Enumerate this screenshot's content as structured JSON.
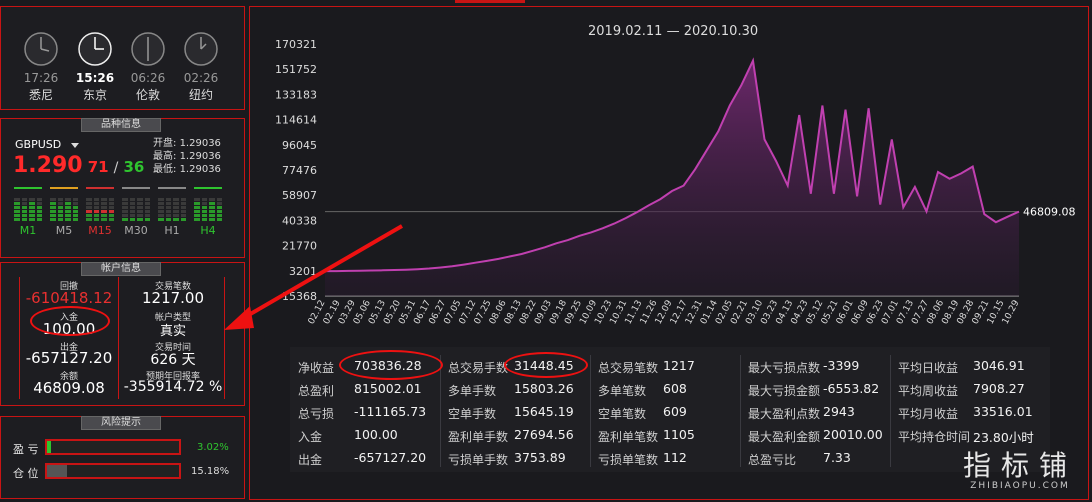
{
  "clocks": [
    {
      "time": "17:26",
      "city": "悉尼"
    },
    {
      "time": "15:26",
      "city": "东京"
    },
    {
      "time": "06:26",
      "city": "伦敦"
    },
    {
      "time": "02:26",
      "city": "纽约"
    }
  ],
  "symbol_panel": {
    "title": "品种信息",
    "symbol": "GBPUSD",
    "price_big": "1.290",
    "price_mid": "71",
    "price_sep": "/",
    "price_small": "36",
    "open_label": "开盘:",
    "open": "1.29036",
    "high_label": "最高:",
    "high": "1.29036",
    "low_label": "最低:",
    "low": "1.29036",
    "timeframes": [
      "M1",
      "M5",
      "M15",
      "M30",
      "H1",
      "H4"
    ]
  },
  "account_panel": {
    "title": "帐户信息",
    "drawdown_label": "回撤",
    "drawdown": "-610418.12",
    "deposit_label": "入金",
    "deposit": "100.00",
    "withdraw_label": "出金",
    "withdraw": "-657127.20",
    "balance_label": "余额",
    "balance": "46809.08",
    "trades_label": "交易笔数",
    "trades": "1217.00",
    "type_label": "帐户类型",
    "type": "真实",
    "time_label": "交易时间",
    "time": "626 天",
    "annual_label": "预期年回报率",
    "annual": "-355914.72 %"
  },
  "risk_panel": {
    "title": "风险提示",
    "profit_label": "盈 亏",
    "profit_pct": "3.02%",
    "profit_fill": 0.03,
    "position_label": "仓 位",
    "position_pct": "15.18%",
    "position_fill": 0.15
  },
  "chart_data": {
    "type": "area",
    "title": "2019.02.11 — 2020.10.30",
    "y_ticks": [
      "170321",
      "151752",
      "133183",
      "114614",
      "96045",
      "77476",
      "58907",
      "40338",
      "21770",
      "3201",
      "-15368"
    ],
    "ylim": [
      -15368,
      170321
    ],
    "x_ticks": [
      "02.12",
      "02.19",
      "03.29",
      "05.06",
      "05.13",
      "05.20",
      "05.31",
      "06.17",
      "06.27",
      "07.05",
      "07.12",
      "07.25",
      "08.06",
      "08.13",
      "08.22",
      "09.03",
      "09.18",
      "09.25",
      "10.09",
      "10.23",
      "10.31",
      "11.13",
      "11.26",
      "12.09",
      "12.17",
      "12.31",
      "01.14",
      "02.05",
      "02.21",
      "03.10",
      "03.23",
      "04.13",
      "04.23",
      "05.12",
      "05.21",
      "06.01",
      "06.09",
      "06.23",
      "07.01",
      "07.13",
      "07.27",
      "08.06",
      "08.19",
      "08.28",
      "09.21",
      "10.15",
      "10.29"
    ],
    "last_value_label": "46809.08",
    "values": [
      3000,
      3000,
      3100,
      3200,
      3400,
      3600,
      3800,
      4000,
      4400,
      4900,
      5600,
      6500,
      7800,
      9200,
      10500,
      12000,
      13800,
      15600,
      18000,
      20500,
      23500,
      25800,
      29000,
      31500,
      34500,
      38000,
      42000,
      46500,
      51500,
      56000,
      62000,
      66000,
      78000,
      92000,
      106000,
      125000,
      140000,
      158000,
      100000,
      84000,
      66000,
      118000,
      60000,
      125000,
      60000,
      122000,
      58000,
      123000,
      52000,
      100000,
      50000,
      65000,
      47000,
      76000,
      71000,
      75000,
      80000,
      45000,
      39000,
      43000,
      46809
    ]
  },
  "stats": {
    "col1": [
      {
        "k": "净收益",
        "v": "703836.28"
      },
      {
        "k": "总盈利",
        "v": "815002.01"
      },
      {
        "k": "总亏损",
        "v": "-111165.73"
      },
      {
        "k": "入金",
        "v": "100.00"
      },
      {
        "k": "出金",
        "v": "-657127.20"
      }
    ],
    "col2": [
      {
        "k": "总交易手数",
        "v": "31448.45"
      },
      {
        "k": "多单手数",
        "v": "15803.26"
      },
      {
        "k": "空单手数",
        "v": "15645.19"
      },
      {
        "k": "盈利单手数",
        "v": "27694.56"
      },
      {
        "k": "亏损单手数",
        "v": "3753.89"
      }
    ],
    "col3": [
      {
        "k": "总交易笔数",
        "v": "1217"
      },
      {
        "k": "多单笔数",
        "v": "608"
      },
      {
        "k": "空单笔数",
        "v": "609"
      },
      {
        "k": "盈利单笔数",
        "v": "1105"
      },
      {
        "k": "亏损单笔数",
        "v": "112"
      }
    ],
    "col4": [
      {
        "k": "最大亏损点数",
        "v": "-3399"
      },
      {
        "k": "最大亏损金额",
        "v": "-6553.82"
      },
      {
        "k": "最大盈利点数",
        "v": "2943"
      },
      {
        "k": "最大盈利金额",
        "v": "20010.00"
      },
      {
        "k": "总盈亏比",
        "v": "7.33"
      }
    ],
    "col5": [
      {
        "k": "平均日收益",
        "v": "3046.91"
      },
      {
        "k": "平均周收益",
        "v": "7908.27"
      },
      {
        "k": "平均月收益",
        "v": "33516.01"
      },
      {
        "k": "平均持仓时间",
        "v": "23.80小时"
      }
    ]
  },
  "watermark": {
    "cn": "指标铺",
    "en": "ZHIBIAOPU.COM"
  },
  "colors": {
    "accent_red": "#c81414",
    "line": "#c040b0",
    "up_green": "#2fc42f"
  }
}
